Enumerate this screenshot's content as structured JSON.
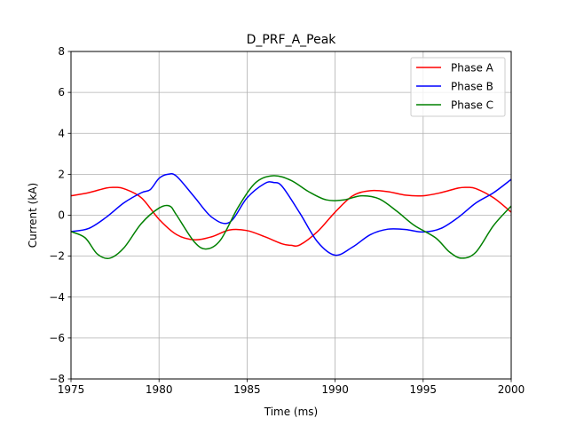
{
  "chart_data": {
    "type": "line",
    "title": "D_PRF_A_Peak",
    "xlabel": "Time (ms)",
    "ylabel": "Current (kA)",
    "xlim": [
      1975,
      2000
    ],
    "ylim": [
      -8,
      8
    ],
    "xticks": [
      1975,
      1980,
      1985,
      1990,
      1995,
      2000
    ],
    "yticks": [
      -8,
      -6,
      -4,
      -2,
      0,
      2,
      4,
      6,
      8
    ],
    "grid": true,
    "legend_position": "top-right",
    "series": [
      {
        "name": "Phase A",
        "color": "#ff0000",
        "x": [
          1975,
          1976,
          1977,
          1977.5,
          1978,
          1979,
          1980,
          1981,
          1982,
          1983,
          1984,
          1985,
          1986,
          1987,
          1987.5,
          1988,
          1989,
          1990,
          1991,
          1992,
          1993,
          1994,
          1995,
          1996,
          1997,
          1997.5,
          1998,
          1999,
          2000
        ],
        "y": [
          0.95,
          1.1,
          1.33,
          1.36,
          1.3,
          0.85,
          -0.2,
          -0.95,
          -1.2,
          -1.05,
          -0.72,
          -0.75,
          -1.05,
          -1.4,
          -1.47,
          -1.45,
          -0.8,
          0.15,
          0.95,
          1.2,
          1.15,
          0.98,
          0.95,
          1.1,
          1.33,
          1.36,
          1.3,
          0.85,
          0.15
        ]
      },
      {
        "name": "Phase B",
        "color": "#0000ff",
        "x": [
          1975,
          1976,
          1977,
          1978,
          1979,
          1979.5,
          1980,
          1980.5,
          1981,
          1982,
          1983,
          1984,
          1985,
          1986,
          1986.5,
          1987,
          1988,
          1989,
          1990,
          1991,
          1992,
          1993,
          1994,
          1995,
          1996,
          1997,
          1998,
          1999,
          2000
        ],
        "y": [
          -0.8,
          -0.65,
          -0.1,
          0.6,
          1.1,
          1.25,
          1.8,
          2.0,
          1.9,
          0.9,
          -0.1,
          -0.35,
          0.85,
          1.55,
          1.6,
          1.4,
          0.1,
          -1.3,
          -1.95,
          -1.55,
          -0.95,
          -0.68,
          -0.7,
          -0.82,
          -0.65,
          -0.1,
          0.6,
          1.1,
          1.75
        ]
      },
      {
        "name": "Phase C",
        "color": "#008000",
        "x": [
          1975,
          1975.8,
          1976.5,
          1977.2,
          1978,
          1979,
          1980,
          1980.6,
          1981,
          1982,
          1982.7,
          1983.5,
          1984.5,
          1985.5,
          1986.5,
          1987.5,
          1988.5,
          1989.5,
          1990.5,
          1991.5,
          1992.5,
          1993.5,
          1994.5,
          1995.7,
          1996.5,
          1997.2,
          1998,
          1999,
          2000
        ],
        "y": [
          -0.8,
          -1.1,
          -1.9,
          -2.1,
          -1.6,
          -0.4,
          0.35,
          0.45,
          0.0,
          -1.3,
          -1.65,
          -1.2,
          0.4,
          1.6,
          1.93,
          1.7,
          1.15,
          0.75,
          0.75,
          0.95,
          0.8,
          0.2,
          -0.5,
          -1.1,
          -1.8,
          -2.1,
          -1.8,
          -0.5,
          0.45
        ]
      }
    ]
  }
}
